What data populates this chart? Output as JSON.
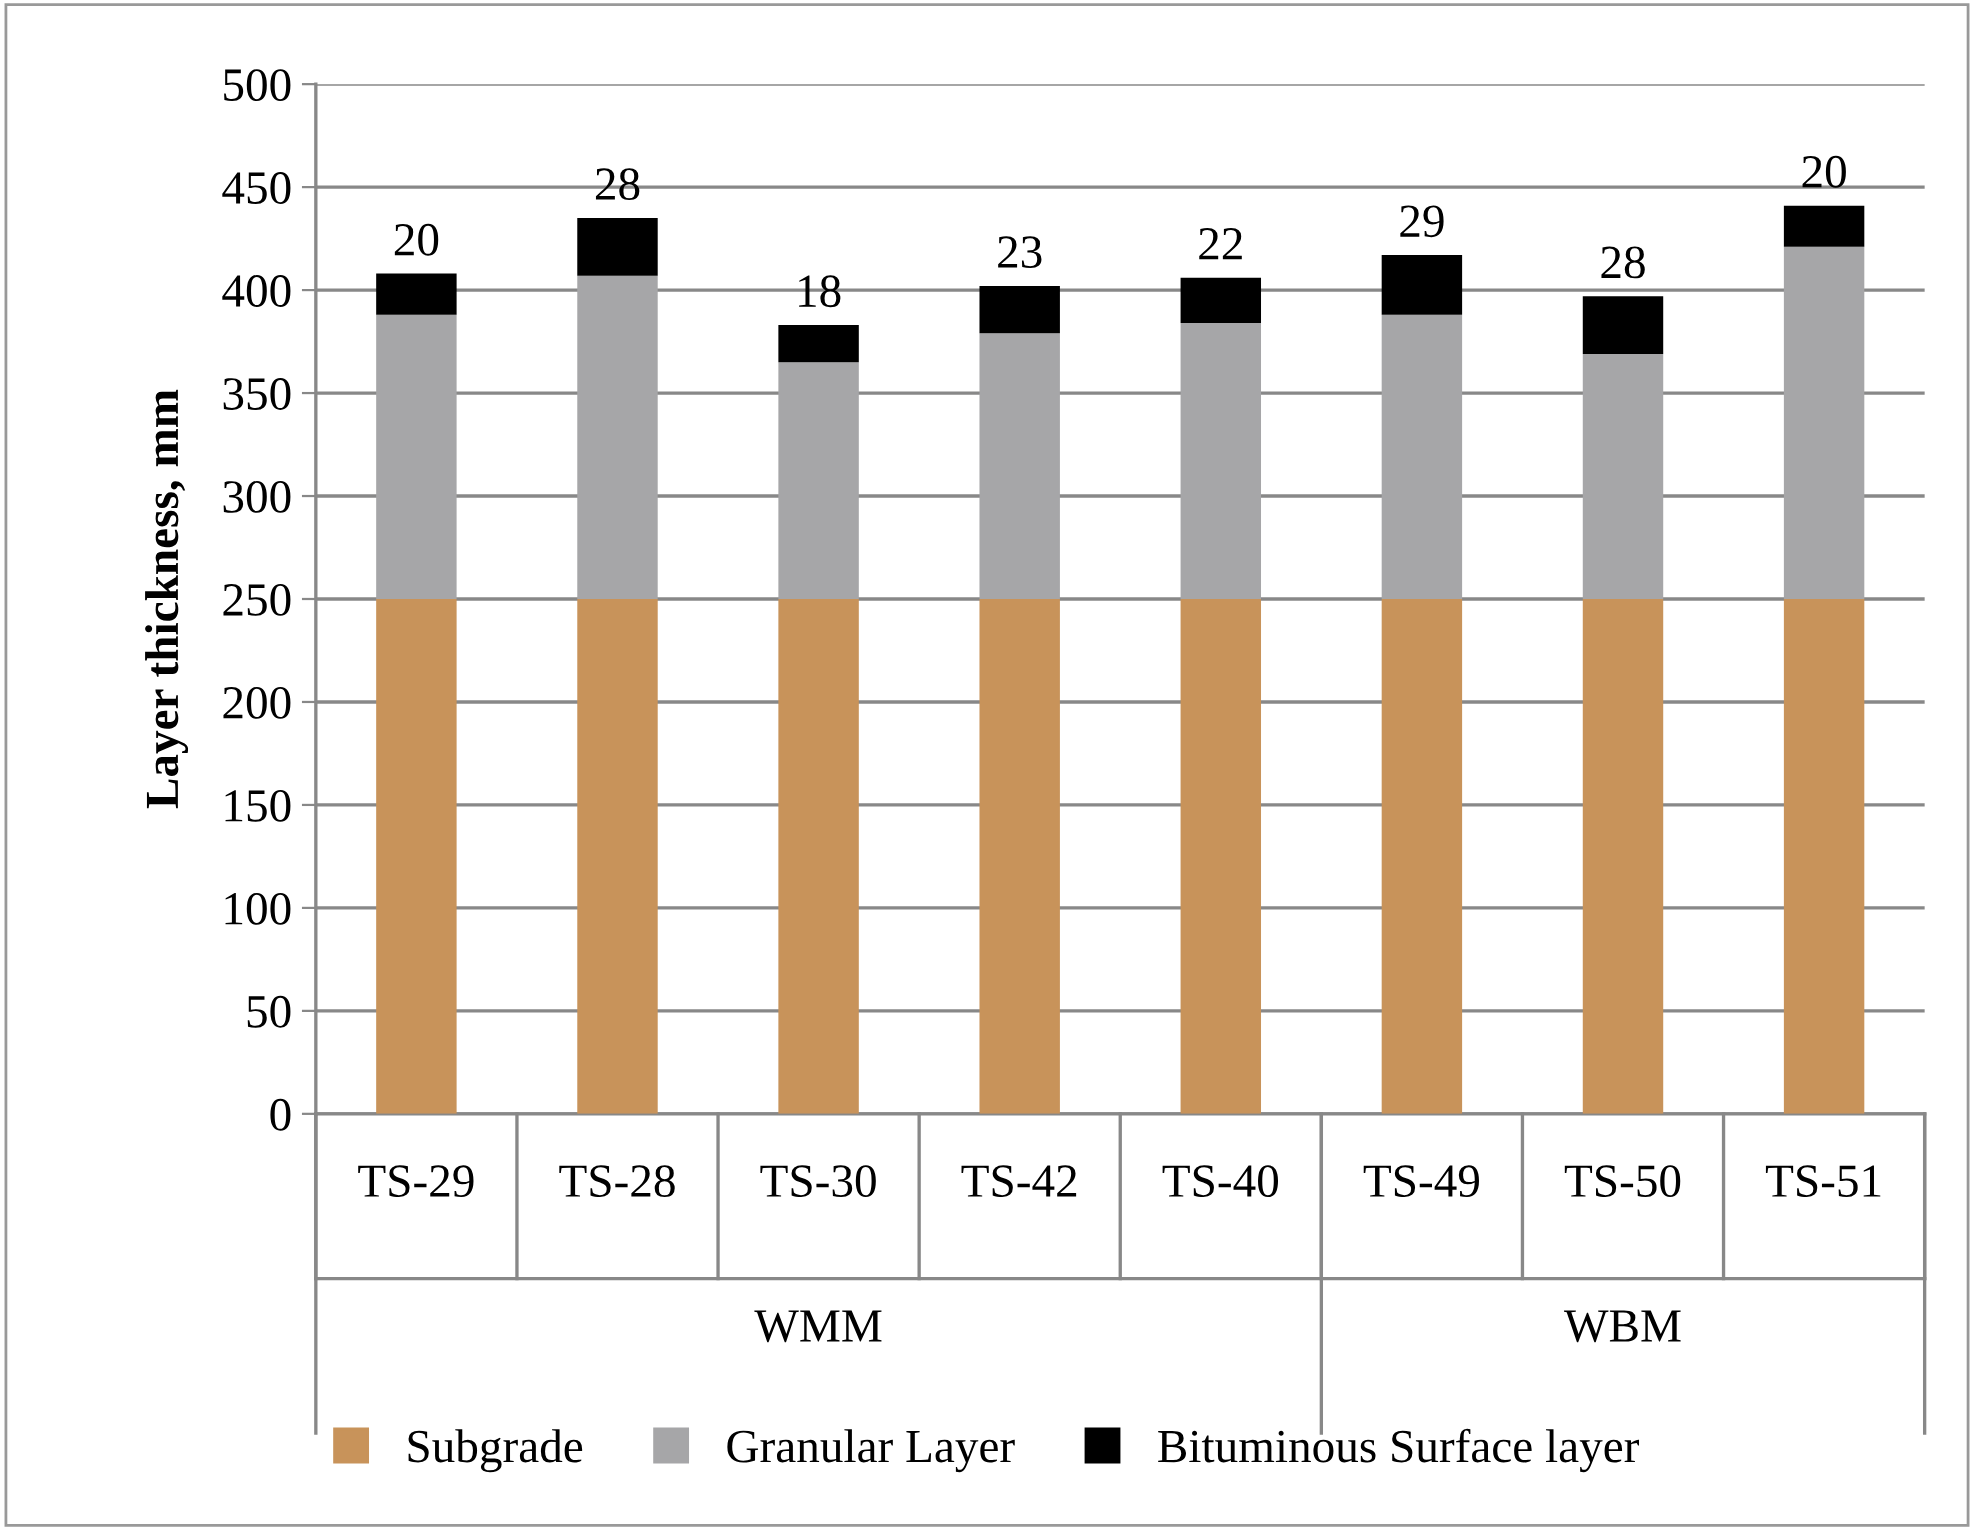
{
  "chart_data": {
    "type": "bar",
    "stacked": true,
    "ylabel": "Layer thickness, mm",
    "categories": [
      "TS-29",
      "TS-28",
      "TS-30",
      "TS-42",
      "TS-40",
      "TS-49",
      "TS-50",
      "TS-51"
    ],
    "series": [
      {
        "name": "Subgrade",
        "color": "#c8935a",
        "values": [
          250,
          250,
          250,
          250,
          250,
          250,
          250,
          250
        ]
      },
      {
        "name": "Granular Layer",
        "color": "#a6a6a8",
        "values": [
          138,
          157,
          115,
          129,
          134,
          138,
          119,
          171
        ]
      },
      {
        "name": "Bituminous Surface layer",
        "color": "#000000",
        "values": [
          20,
          28,
          18,
          23,
          22,
          29,
          28,
          20
        ],
        "value_labels": [
          "20",
          "28",
          "18",
          "23",
          "22",
          "29",
          "28",
          "20"
        ]
      }
    ],
    "annotations": [
      "WMM",
      "WBM"
    ],
    "ylim": [
      0,
      500
    ],
    "yticks": [
      0,
      50,
      100,
      150,
      200,
      250,
      300,
      350,
      400,
      450,
      500
    ],
    "grid": "y",
    "legend": "bottom"
  }
}
